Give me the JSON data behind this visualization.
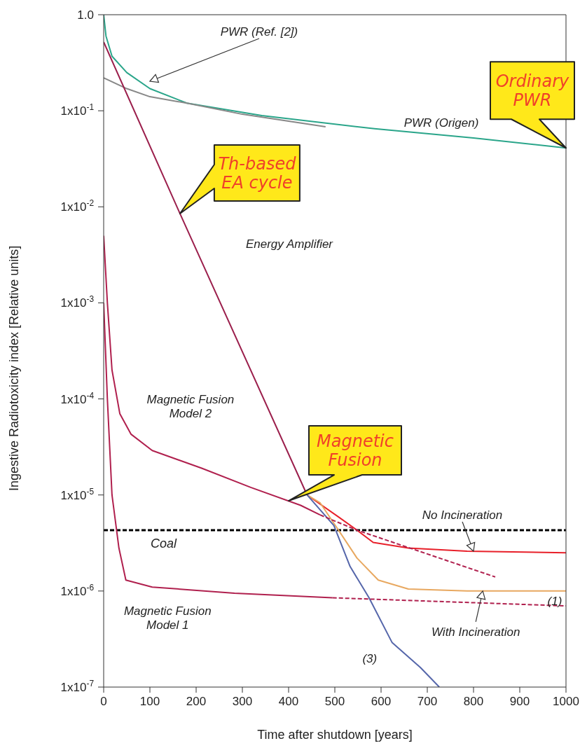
{
  "chart_data": {
    "type": "line",
    "xlabel": "Time after shutdown [years]",
    "ylabel": "Ingestive Radiotoxicity index [Relative units]",
    "log": "y",
    "xlim": [
      0,
      1000
    ],
    "xticks": [
      0,
      100,
      200,
      300,
      400,
      500,
      600,
      700,
      800,
      900,
      1000
    ],
    "ylim": [
      1e-07,
      1
    ],
    "yticks": [
      {
        "value": 1,
        "label": "1.0"
      },
      {
        "value": 0.1,
        "label": "1x10$^{-1}$"
      },
      {
        "value": 0.01,
        "label": "1x10$^{-2}$"
      },
      {
        "value": 0.001,
        "label": "1x10$^{-3}$"
      },
      {
        "value": 0.0001,
        "label": "1x10$^{-4}$"
      },
      {
        "value": 1e-05,
        "label": "1x10$^{-5}$"
      },
      {
        "value": 1e-06,
        "label": "1x10$^{-6}$"
      },
      {
        "value": 1e-07,
        "label": "1x10$^{-7}$"
      }
    ],
    "series": [
      {
        "color": "#2aa58a",
        "line_style": "solid",
        "x": [
          0,
          5,
          18,
          50,
          100,
          180,
          342,
          586,
          800,
          1000
        ],
        "values": [
          1.0,
          0.6,
          0.37,
          0.25,
          0.17,
          0.12,
          0.089,
          0.065,
          0.052,
          0.041
        ]
      },
      {
        "color": "#888888",
        "line_style": "solid",
        "x": [
          0,
          50,
          100,
          180,
          300,
          480
        ],
        "values": [
          0.22,
          0.17,
          0.14,
          0.12,
          0.092,
          0.068
        ]
      },
      {
        "color": "#9b1f4c",
        "line_style": "solid",
        "x": [
          0,
          165,
          440
        ],
        "values": [
          0.52,
          0.0085,
          1e-05
        ]
      },
      {
        "color": "#e8202a",
        "line_style": "solid",
        "x": [
          440,
          508,
          548,
          583,
          659,
          786,
          1000
        ],
        "values": [
          1e-05,
          5.9e-06,
          4.3e-06,
          3.2e-06,
          2.8e-06,
          2.6e-06,
          2.5e-06
        ]
      },
      {
        "color": "#e8a860",
        "line_style": "solid",
        "x": [
          440,
          468,
          508,
          548,
          594,
          659,
          786,
          1000
        ],
        "values": [
          1e-05,
          8.3e-06,
          4.3e-06,
          2.2e-06,
          1.3e-06,
          1.05e-06,
          1e-06,
          1e-06
        ]
      },
      {
        "color": "#5566aa",
        "line_style": "solid",
        "x": [
          440,
          498,
          533,
          574,
          624,
          685,
          726
        ],
        "values": [
          1e-05,
          4.8e-06,
          1.8e-06,
          8.5e-07,
          2.9e-07,
          1.6e-07,
          1e-07
        ]
      },
      {
        "color": "#b0204e",
        "line_style": "solid",
        "x": [
          0,
          8,
          18,
          35,
          59,
          105,
          212,
          318,
          426,
          468
        ],
        "values": [
          0.005,
          0.001,
          0.0002,
          7e-05,
          4.3e-05,
          2.9e-05,
          1.9e-05,
          1.2e-05,
          7.8e-06,
          6.2e-06
        ]
      },
      {
        "color": "#b0204e",
        "line_style": "dashed",
        "x": [
          468,
          548,
          847
        ],
        "values": [
          6.2e-06,
          4.3e-06,
          1.4e-06
        ]
      },
      {
        "color": "#b0204e",
        "line_style": "solid",
        "x": [
          0,
          8,
          18,
          33,
          48,
          105,
          283,
          495
        ],
        "values": [
          0.001,
          0.0001,
          1e-05,
          2.8e-06,
          1.3e-06,
          1.1e-06,
          9.5e-07,
          8.5e-07
        ]
      },
      {
        "color": "#b0204e",
        "line_style": "dashed",
        "x": [
          495,
          1000
        ],
        "values": [
          8.5e-07,
          7e-07
        ]
      }
    ],
    "ref_lines": [
      {
        "axis": "y",
        "value": 4.3e-06,
        "label": "Coal",
        "color": "#000000",
        "line_style": "dashed"
      }
    ],
    "annotations": [
      "PWR  (Ref. [2])",
      {
        "text": "PWR (Origen)",
        "x": 700,
        "y": 0.058
      },
      "Energy Amplifier",
      {
        "text": "Magnetic Fusion\nModel 2",
        "x": 59,
        "y": 4.3e-05
      },
      {
        "text": "No Incineration",
        "x": 800,
        "y": 2.6e-06
      },
      {
        "text": "With Incineration",
        "x": 820,
        "y": 1e-06
      },
      {
        "text": "(1)",
        "x": 1000,
        "y": 1e-06
      },
      {
        "text": "(3)",
        "x": 624,
        "y": 2.9e-07
      },
      {
        "text": "Magnetic Fusion\nModel 1",
        "x": 105,
        "y": 1.1e-06
      },
      {
        "text": "Ordinary\nPWR",
        "x": 1000,
        "y": 0.041
      },
      {
        "text": "Th-based\nEA cycle",
        "x": 165,
        "y": 0.0085
      },
      {
        "text": "Magnetic\nFusion",
        "x": 400,
        "y": 8.7e-06
      }
    ]
  }
}
